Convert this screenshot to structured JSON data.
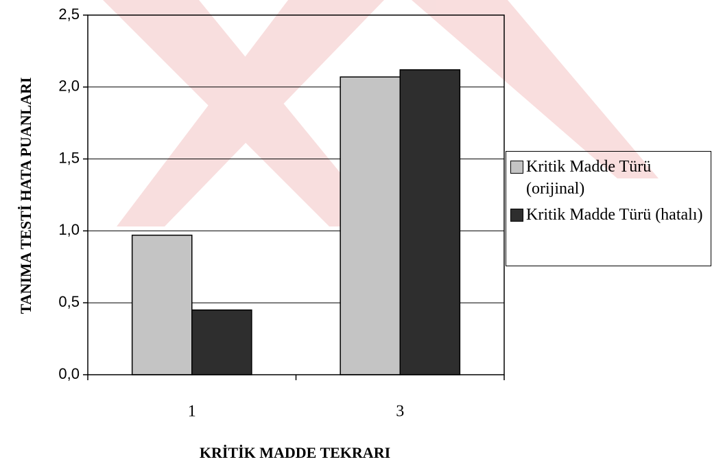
{
  "chart_data": {
    "type": "bar",
    "x_label": "KRİTİK MADDE TEKRARI",
    "y_label": "TANIMA TESTİ HATA PUANLARI",
    "categories": [
      "1",
      "3"
    ],
    "series": [
      {
        "name": "Kritik Madde Türü (orijinal)",
        "color": "#c4c4c4",
        "values": [
          0.97,
          2.07
        ]
      },
      {
        "name": "Kritik Madde Türü (hatalı)",
        "color": "#2e2e2e",
        "values": [
          0.45,
          2.12
        ]
      }
    ],
    "ylim": [
      0,
      2.5
    ],
    "yticks": [
      {
        "value": 0,
        "label": "0,0"
      },
      {
        "value": 0.5,
        "label": "0,5"
      },
      {
        "value": 1,
        "label": "1,0"
      },
      {
        "value": 1.5,
        "label": "1,5"
      },
      {
        "value": 2,
        "label": "2,0"
      },
      {
        "value": 2.5,
        "label": "2,5"
      }
    ],
    "grid": true,
    "legend": "right"
  }
}
